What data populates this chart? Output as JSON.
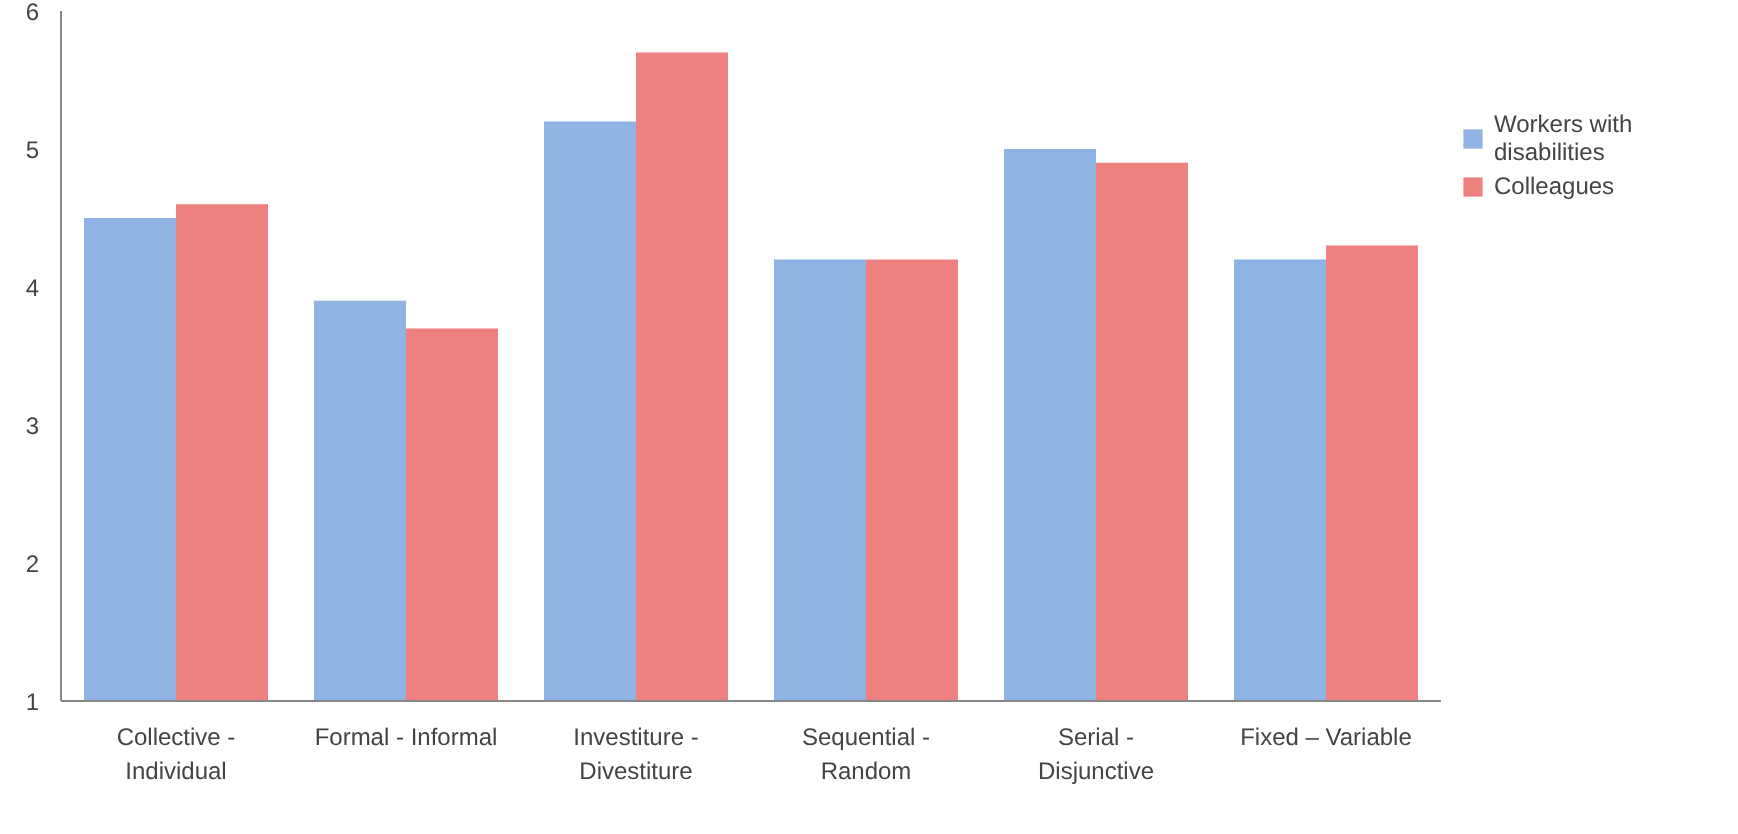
{
  "chart_data": {
    "type": "bar",
    "categories": [
      "Collective -\nIndividual",
      "Formal - Informal",
      "Investiture -\nDivestiture",
      "Sequential -\nRandom",
      "Serial -\nDisjunctive",
      "Fixed – Variable"
    ],
    "series": [
      {
        "name": "Workers with\ndisabilities",
        "color": "#8fb3e2",
        "values": [
          4.5,
          3.9,
          5.2,
          4.2,
          5.0,
          4.2
        ]
      },
      {
        "name": "Colleagues",
        "color": "#ef8080",
        "values": [
          4.6,
          3.7,
          5.7,
          4.2,
          4.9,
          4.3
        ]
      }
    ],
    "ylim": [
      1,
      6
    ],
    "yticks": [
      1,
      2,
      3,
      4,
      5,
      6
    ],
    "grid": false,
    "legend": "top right"
  }
}
